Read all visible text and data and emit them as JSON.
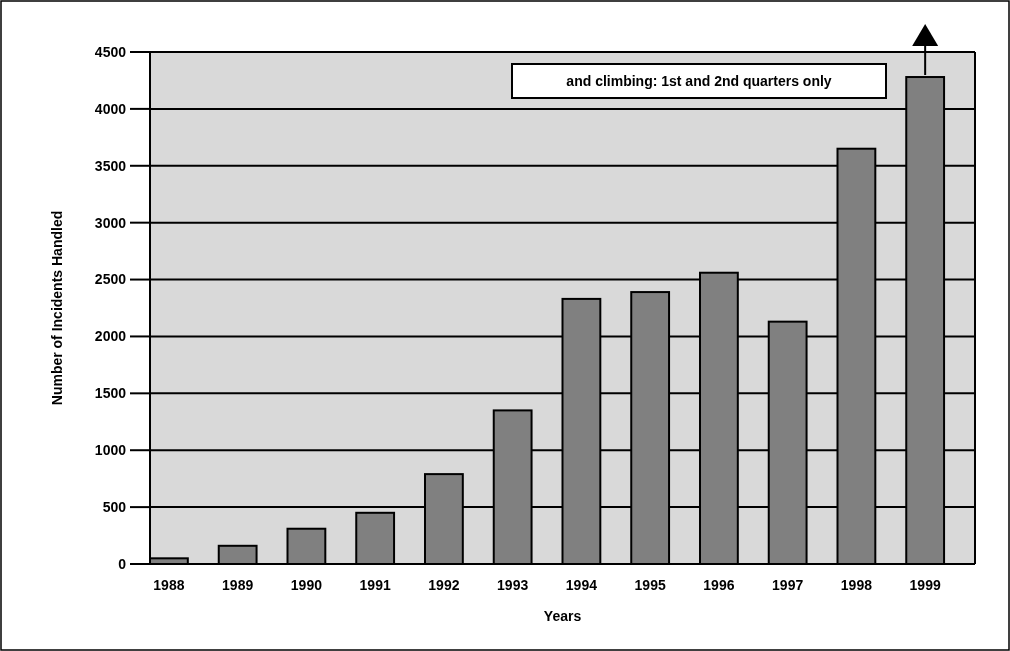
{
  "chart_data": {
    "type": "bar",
    "xlabel": "Years",
    "ylabel": "Number of Incidents Handled",
    "categories": [
      "1988",
      "1989",
      "1990",
      "1991",
      "1992",
      "1993",
      "1994",
      "1995",
      "1996",
      "1997",
      "1998",
      "1999"
    ],
    "values": [
      50,
      160,
      310,
      450,
      790,
      1350,
      2330,
      2390,
      2560,
      2130,
      3650,
      4280
    ],
    "color": "#808080",
    "ylim": [
      0,
      4500
    ],
    "yticks": [
      0,
      500,
      1000,
      1500,
      2000,
      2500,
      3000,
      3500,
      4000,
      4500
    ],
    "grid": "y",
    "annotations": [
      "and climbing: 1st and 2nd quarters only"
    ]
  }
}
